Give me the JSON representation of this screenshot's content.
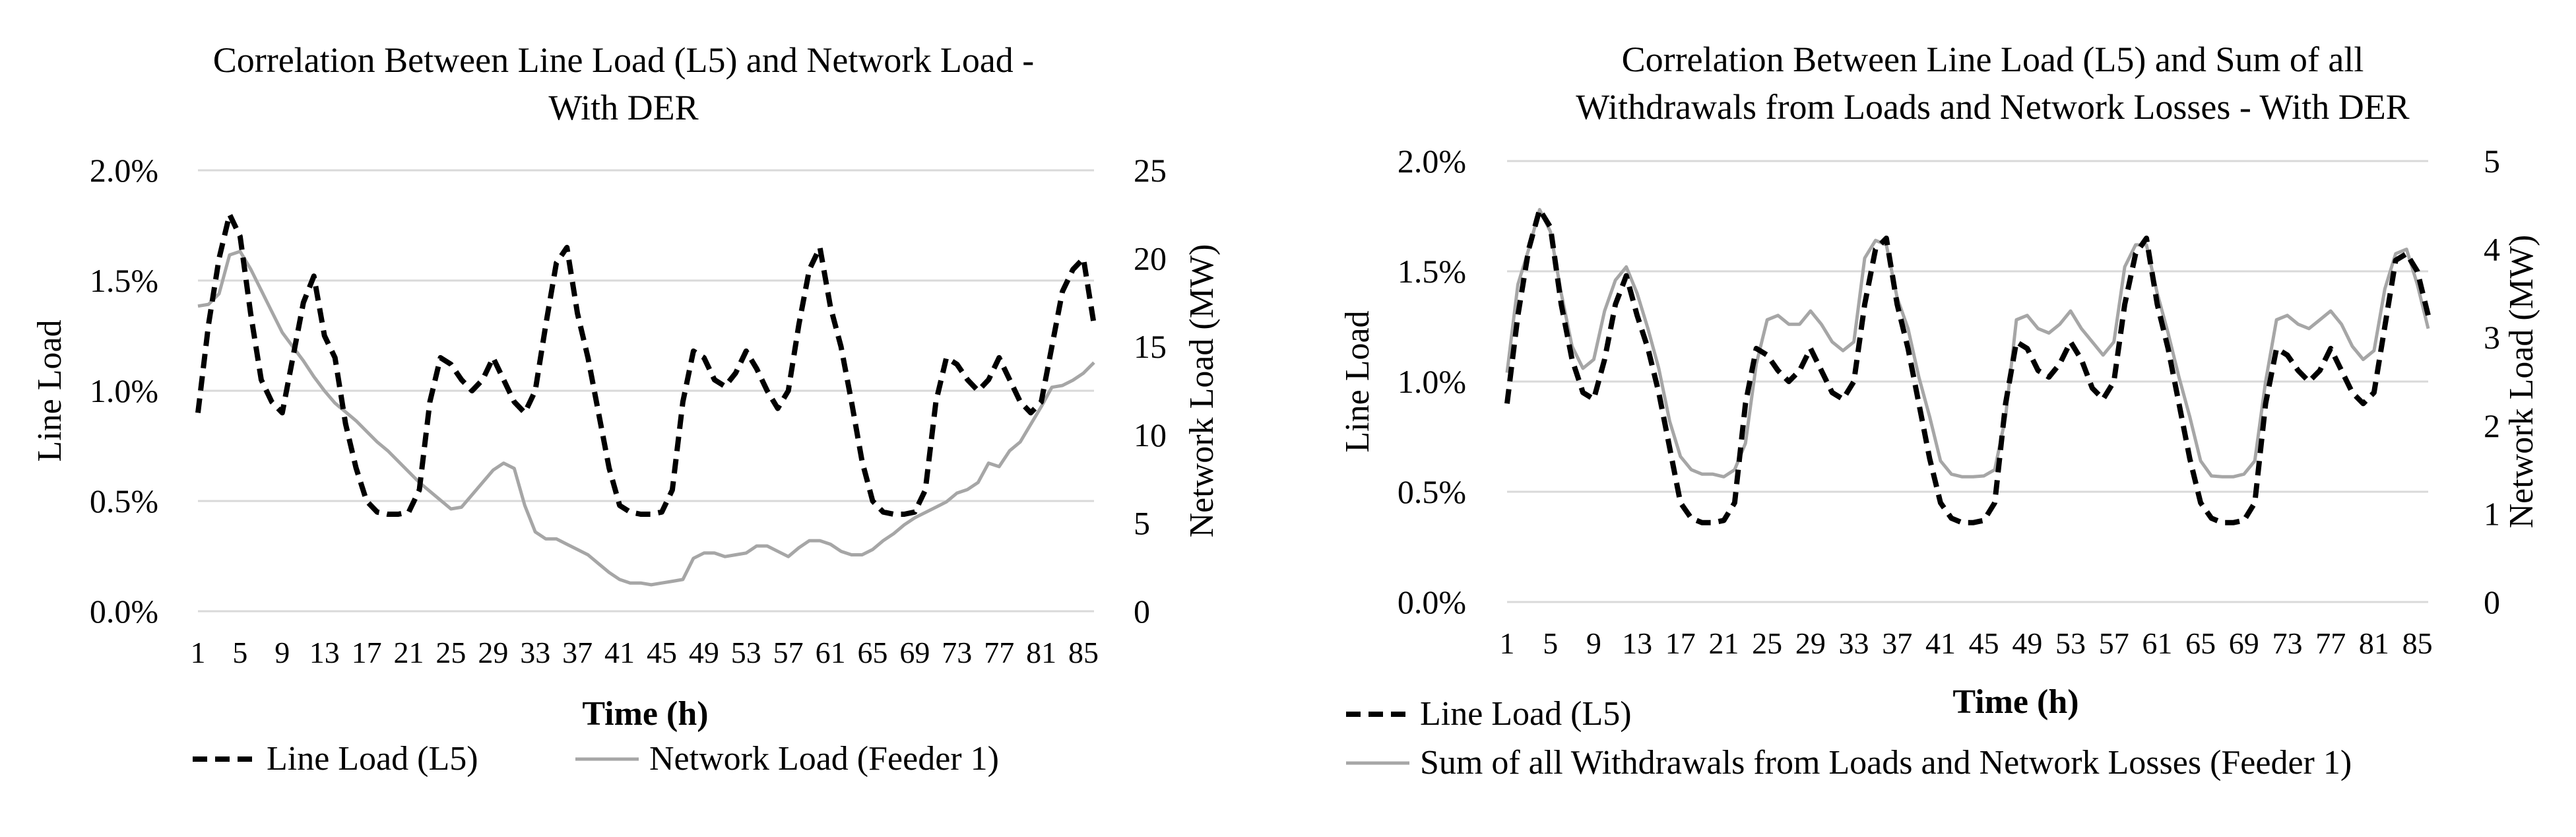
{
  "chart_data": [
    {
      "type": "line",
      "title_lines": [
        "Correlation  Between Line Load (L5) and  Network Load -",
        "With DER"
      ],
      "xlabel": "Time (h)",
      "ylabel": "Line Load",
      "y2label": "Network Load (MW)",
      "x": [
        1,
        2,
        3,
        4,
        5,
        6,
        7,
        8,
        9,
        10,
        11,
        12,
        13,
        14,
        15,
        16,
        17,
        18,
        19,
        20,
        21,
        22,
        23,
        24,
        25,
        26,
        27,
        28,
        29,
        30,
        31,
        32,
        33,
        34,
        35,
        36,
        37,
        38,
        39,
        40,
        41,
        42,
        43,
        44,
        45,
        46,
        47,
        48,
        49,
        50,
        51,
        52,
        53,
        54,
        55,
        56,
        57,
        58,
        59,
        60,
        61,
        62,
        63,
        64,
        65,
        66,
        67,
        68,
        69,
        70,
        71,
        72,
        73,
        74,
        75,
        76,
        77,
        78,
        79,
        80,
        81,
        82,
        83,
        84,
        85,
        86
      ],
      "xtick_labels": [
        "1",
        "5",
        "9",
        "13",
        "17",
        "21",
        "25",
        "29",
        "33",
        "37",
        "41",
        "45",
        "49",
        "53",
        "57",
        "61",
        "65",
        "69",
        "73",
        "77",
        "81",
        "85"
      ],
      "xlim": [
        1,
        86
      ],
      "ylim": [
        0,
        2.0
      ],
      "yticks": [
        0,
        0.5,
        1.0,
        1.5,
        2.0
      ],
      "ytick_labels": [
        "0.0%",
        "0.5%",
        "1.0%",
        "1.5%",
        "2.0%"
      ],
      "y2lim": [
        0,
        25
      ],
      "y2ticks": [
        0,
        5,
        10,
        15,
        20,
        25
      ],
      "y2tick_labels": [
        "0",
        "5",
        "10",
        "15",
        "20",
        "25"
      ],
      "series": [
        {
          "name": "Line Load (L5)",
          "axis": "left",
          "style": "dashed",
          "color": "#000000",
          "values": [
            0.9,
            1.3,
            1.6,
            1.8,
            1.7,
            1.35,
            1.05,
            0.95,
            0.9,
            1.15,
            1.4,
            1.52,
            1.25,
            1.15,
            0.85,
            0.65,
            0.5,
            0.45,
            0.44,
            0.44,
            0.45,
            0.55,
            0.95,
            1.15,
            1.12,
            1.05,
            1.0,
            1.05,
            1.15,
            1.05,
            0.95,
            0.9,
            1.0,
            1.3,
            1.58,
            1.65,
            1.35,
            1.15,
            0.9,
            0.65,
            0.48,
            0.45,
            0.44,
            0.44,
            0.45,
            0.55,
            0.95,
            1.18,
            1.15,
            1.05,
            1.02,
            1.08,
            1.18,
            1.1,
            1.0,
            0.92,
            1.0,
            1.3,
            1.55,
            1.65,
            1.38,
            1.2,
            0.95,
            0.68,
            0.5,
            0.45,
            0.44,
            0.44,
            0.45,
            0.55,
            0.95,
            1.15,
            1.12,
            1.05,
            1.0,
            1.05,
            1.15,
            1.05,
            0.95,
            0.9,
            0.95,
            1.2,
            1.45,
            1.55,
            1.6,
            1.3
          ]
        },
        {
          "name": "Network Load (Feeder 1)",
          "axis": "right",
          "style": "solid",
          "color": "#a6a6a6",
          "values": [
            17.3,
            17.4,
            18.0,
            20.2,
            20.4,
            19.4,
            18.2,
            17.0,
            15.8,
            15.0,
            14.2,
            13.3,
            12.5,
            11.8,
            11.3,
            10.8,
            10.2,
            9.6,
            9.1,
            8.5,
            7.9,
            7.3,
            6.8,
            6.3,
            5.8,
            5.9,
            6.6,
            7.3,
            8.0,
            8.4,
            8.1,
            6.0,
            4.5,
            4.1,
            4.1,
            3.8,
            3.5,
            3.2,
            2.7,
            2.2,
            1.8,
            1.6,
            1.6,
            1.5,
            1.6,
            1.7,
            1.8,
            3.0,
            3.3,
            3.3,
            3.1,
            3.2,
            3.3,
            3.7,
            3.7,
            3.4,
            3.1,
            3.6,
            4.0,
            4.0,
            3.8,
            3.4,
            3.2,
            3.2,
            3.5,
            4.0,
            4.4,
            4.9,
            5.3,
            5.6,
            5.9,
            6.2,
            6.7,
            6.9,
            7.3,
            8.4,
            8.2,
            9.1,
            9.6,
            10.6,
            11.6,
            12.7,
            12.8,
            13.1,
            13.5,
            14.1
          ]
        }
      ],
      "legend": [
        "Line Load (L5)",
        "Network Load (Feeder 1)"
      ],
      "legend_position": "bottom"
    },
    {
      "type": "line",
      "title_lines": [
        "Correlation  Between Line Load (L5) and Sum of all",
        "Withdrawals from Loads and Network Losses - With DER"
      ],
      "xlabel": "Time (h)",
      "ylabel": "Line Load",
      "y2label": "Network Load (MW)",
      "x": [
        1,
        2,
        3,
        4,
        5,
        6,
        7,
        8,
        9,
        10,
        11,
        12,
        13,
        14,
        15,
        16,
        17,
        18,
        19,
        20,
        21,
        22,
        23,
        24,
        25,
        26,
        27,
        28,
        29,
        30,
        31,
        32,
        33,
        34,
        35,
        36,
        37,
        38,
        39,
        40,
        41,
        42,
        43,
        44,
        45,
        46,
        47,
        48,
        49,
        50,
        51,
        52,
        53,
        54,
        55,
        56,
        57,
        58,
        59,
        60,
        61,
        62,
        63,
        64,
        65,
        66,
        67,
        68,
        69,
        70,
        71,
        72,
        73,
        74,
        75,
        76,
        77,
        78,
        79,
        80,
        81,
        82,
        83,
        84,
        85,
        86
      ],
      "xtick_labels": [
        "1",
        "5",
        "9",
        "13",
        "17",
        "21",
        "25",
        "29",
        "33",
        "37",
        "41",
        "45",
        "49",
        "53",
        "57",
        "61",
        "65",
        "69",
        "73",
        "77",
        "81",
        "85"
      ],
      "xlim": [
        1,
        86
      ],
      "ylim": [
        0,
        2.0
      ],
      "yticks": [
        0,
        0.5,
        1.0,
        1.5,
        2.0
      ],
      "ytick_labels": [
        "0.0%",
        "0.5%",
        "1.0%",
        "1.5%",
        "2.0%"
      ],
      "y2lim": [
        0,
        5
      ],
      "y2ticks": [
        0,
        1,
        2,
        3,
        4,
        5
      ],
      "y2tick_labels": [
        "0",
        "1",
        "2",
        "3",
        "4",
        "5"
      ],
      "series": [
        {
          "name": "Line Load (L5)",
          "axis": "left",
          "style": "dashed",
          "color": "#000000",
          "values": [
            0.9,
            1.3,
            1.6,
            1.78,
            1.7,
            1.35,
            1.1,
            0.95,
            0.92,
            1.1,
            1.35,
            1.48,
            1.3,
            1.15,
            0.95,
            0.7,
            0.45,
            0.38,
            0.36,
            0.36,
            0.37,
            0.45,
            0.9,
            1.15,
            1.12,
            1.05,
            1.0,
            1.05,
            1.15,
            1.05,
            0.95,
            0.92,
            1.0,
            1.35,
            1.6,
            1.65,
            1.35,
            1.15,
            0.9,
            0.65,
            0.45,
            0.38,
            0.36,
            0.36,
            0.37,
            0.45,
            0.9,
            1.18,
            1.15,
            1.05,
            1.02,
            1.08,
            1.18,
            1.1,
            0.97,
            0.92,
            1.0,
            1.35,
            1.58,
            1.65,
            1.35,
            1.15,
            0.9,
            0.65,
            0.45,
            0.38,
            0.36,
            0.36,
            0.37,
            0.45,
            0.9,
            1.15,
            1.12,
            1.05,
            1.0,
            1.05,
            1.15,
            1.05,
            0.95,
            0.9,
            0.95,
            1.25,
            1.55,
            1.58,
            1.5,
            1.3
          ]
        },
        {
          "name": "Sum of all Withdrawals from Loads and Network Losses (Feeder 1)",
          "axis": "right",
          "style": "solid",
          "color": "#a6a6a6",
          "values": [
            2.6,
            3.6,
            4.0,
            4.45,
            4.2,
            3.5,
            2.9,
            2.65,
            2.75,
            3.3,
            3.65,
            3.8,
            3.5,
            3.1,
            2.65,
            2.05,
            1.65,
            1.5,
            1.45,
            1.45,
            1.42,
            1.5,
            1.8,
            2.7,
            3.2,
            3.25,
            3.15,
            3.15,
            3.3,
            3.15,
            2.95,
            2.85,
            2.95,
            3.9,
            4.1,
            4.05,
            3.45,
            3.1,
            2.55,
            2.1,
            1.6,
            1.45,
            1.42,
            1.42,
            1.43,
            1.5,
            2.1,
            3.2,
            3.25,
            3.1,
            3.05,
            3.15,
            3.3,
            3.1,
            2.95,
            2.8,
            2.95,
            3.8,
            4.05,
            4.05,
            3.5,
            3.05,
            2.55,
            2.1,
            1.6,
            1.43,
            1.42,
            1.42,
            1.45,
            1.6,
            2.5,
            3.2,
            3.25,
            3.15,
            3.1,
            3.2,
            3.3,
            3.15,
            2.9,
            2.75,
            2.85,
            3.55,
            3.95,
            4.0,
            3.6,
            3.1
          ]
        }
      ],
      "legend": [
        "Line Load (L5)",
        "Sum of all Withdrawals from Loads and Network Losses (Feeder 1)"
      ],
      "legend_position": "bottom"
    }
  ]
}
